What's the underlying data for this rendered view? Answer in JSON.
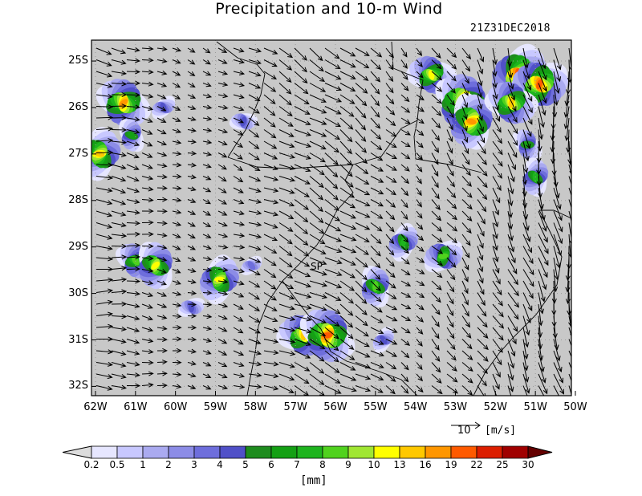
{
  "title": "Precipitation and 10-m Wind",
  "timestamp": "21Z31DEC2018",
  "map": {
    "lat_labels": [
      "25S",
      "26S",
      "27S",
      "28S",
      "29S",
      "30S",
      "31S",
      "32S"
    ],
    "lon_labels": [
      "62W",
      "61W",
      "60W",
      "59W",
      "58W",
      "57W",
      "56W",
      "55W",
      "54W",
      "53W",
      "52W",
      "51W",
      "50W"
    ],
    "lat_range": [
      -32.2,
      -24.55
    ],
    "lon_range": [
      -62.1,
      -50.1
    ],
    "background_color": "#c8c8c8",
    "station_label": "SP"
  },
  "wind_reference": {
    "value": "10",
    "unit": "[m/s]"
  },
  "colorbar": {
    "levels": [
      "0.2",
      "0.5",
      "1",
      "2",
      "3",
      "4",
      "5",
      "6",
      "7",
      "8",
      "9",
      "10",
      "13",
      "16",
      "19",
      "22",
      "25",
      "30"
    ],
    "colors": [
      "#ffffff",
      "#e6e6ff",
      "#c8c8ff",
      "#aaaaf0",
      "#8c8ce6",
      "#6e6edc",
      "#5050c8",
      "#1e8c1e",
      "#14a014",
      "#1eb41e",
      "#50d21e",
      "#a0e632",
      "#ffff00",
      "#ffc800",
      "#ff9600",
      "#ff5a00",
      "#dc1e00",
      "#a00000",
      "#640000"
    ],
    "unit": "[mm]"
  },
  "precip_cells": [
    {
      "lon": -61.3,
      "lat": -25.9,
      "level": 14
    },
    {
      "lon": -61.1,
      "lat": -26.6,
      "level": 8
    },
    {
      "lon": -61.9,
      "lat": -27.0,
      "level": 13
    },
    {
      "lon": -60.3,
      "lat": -26.0,
      "level": 6
    },
    {
      "lon": -58.3,
      "lat": -26.3,
      "level": 6
    },
    {
      "lon": -61.0,
      "lat": -29.3,
      "level": 10
    },
    {
      "lon": -60.5,
      "lat": -29.4,
      "level": 12
    },
    {
      "lon": -58.9,
      "lat": -29.7,
      "level": 12
    },
    {
      "lon": -58.1,
      "lat": -29.4,
      "level": 5
    },
    {
      "lon": -56.8,
      "lat": -30.9,
      "level": 13
    },
    {
      "lon": -56.2,
      "lat": -30.9,
      "level": 15
    },
    {
      "lon": -55.0,
      "lat": -29.85,
      "level": 10
    },
    {
      "lon": -54.3,
      "lat": -28.9,
      "level": 9
    },
    {
      "lon": -53.3,
      "lat": -29.2,
      "level": 10
    },
    {
      "lon": -53.6,
      "lat": -25.3,
      "level": 12
    },
    {
      "lon": -52.8,
      "lat": -25.9,
      "level": 16
    },
    {
      "lon": -52.6,
      "lat": -26.3,
      "level": 14
    },
    {
      "lon": -51.4,
      "lat": -25.3,
      "level": 16
    },
    {
      "lon": -50.9,
      "lat": -25.5,
      "level": 15
    },
    {
      "lon": -51.6,
      "lat": -25.9,
      "level": 13
    },
    {
      "lon": -51.2,
      "lat": -26.8,
      "level": 8
    },
    {
      "lon": -51.0,
      "lat": -27.5,
      "level": 9
    },
    {
      "lon": -54.8,
      "lat": -31.0,
      "level": 6
    },
    {
      "lon": -59.6,
      "lat": -30.3,
      "level": 6
    }
  ]
}
